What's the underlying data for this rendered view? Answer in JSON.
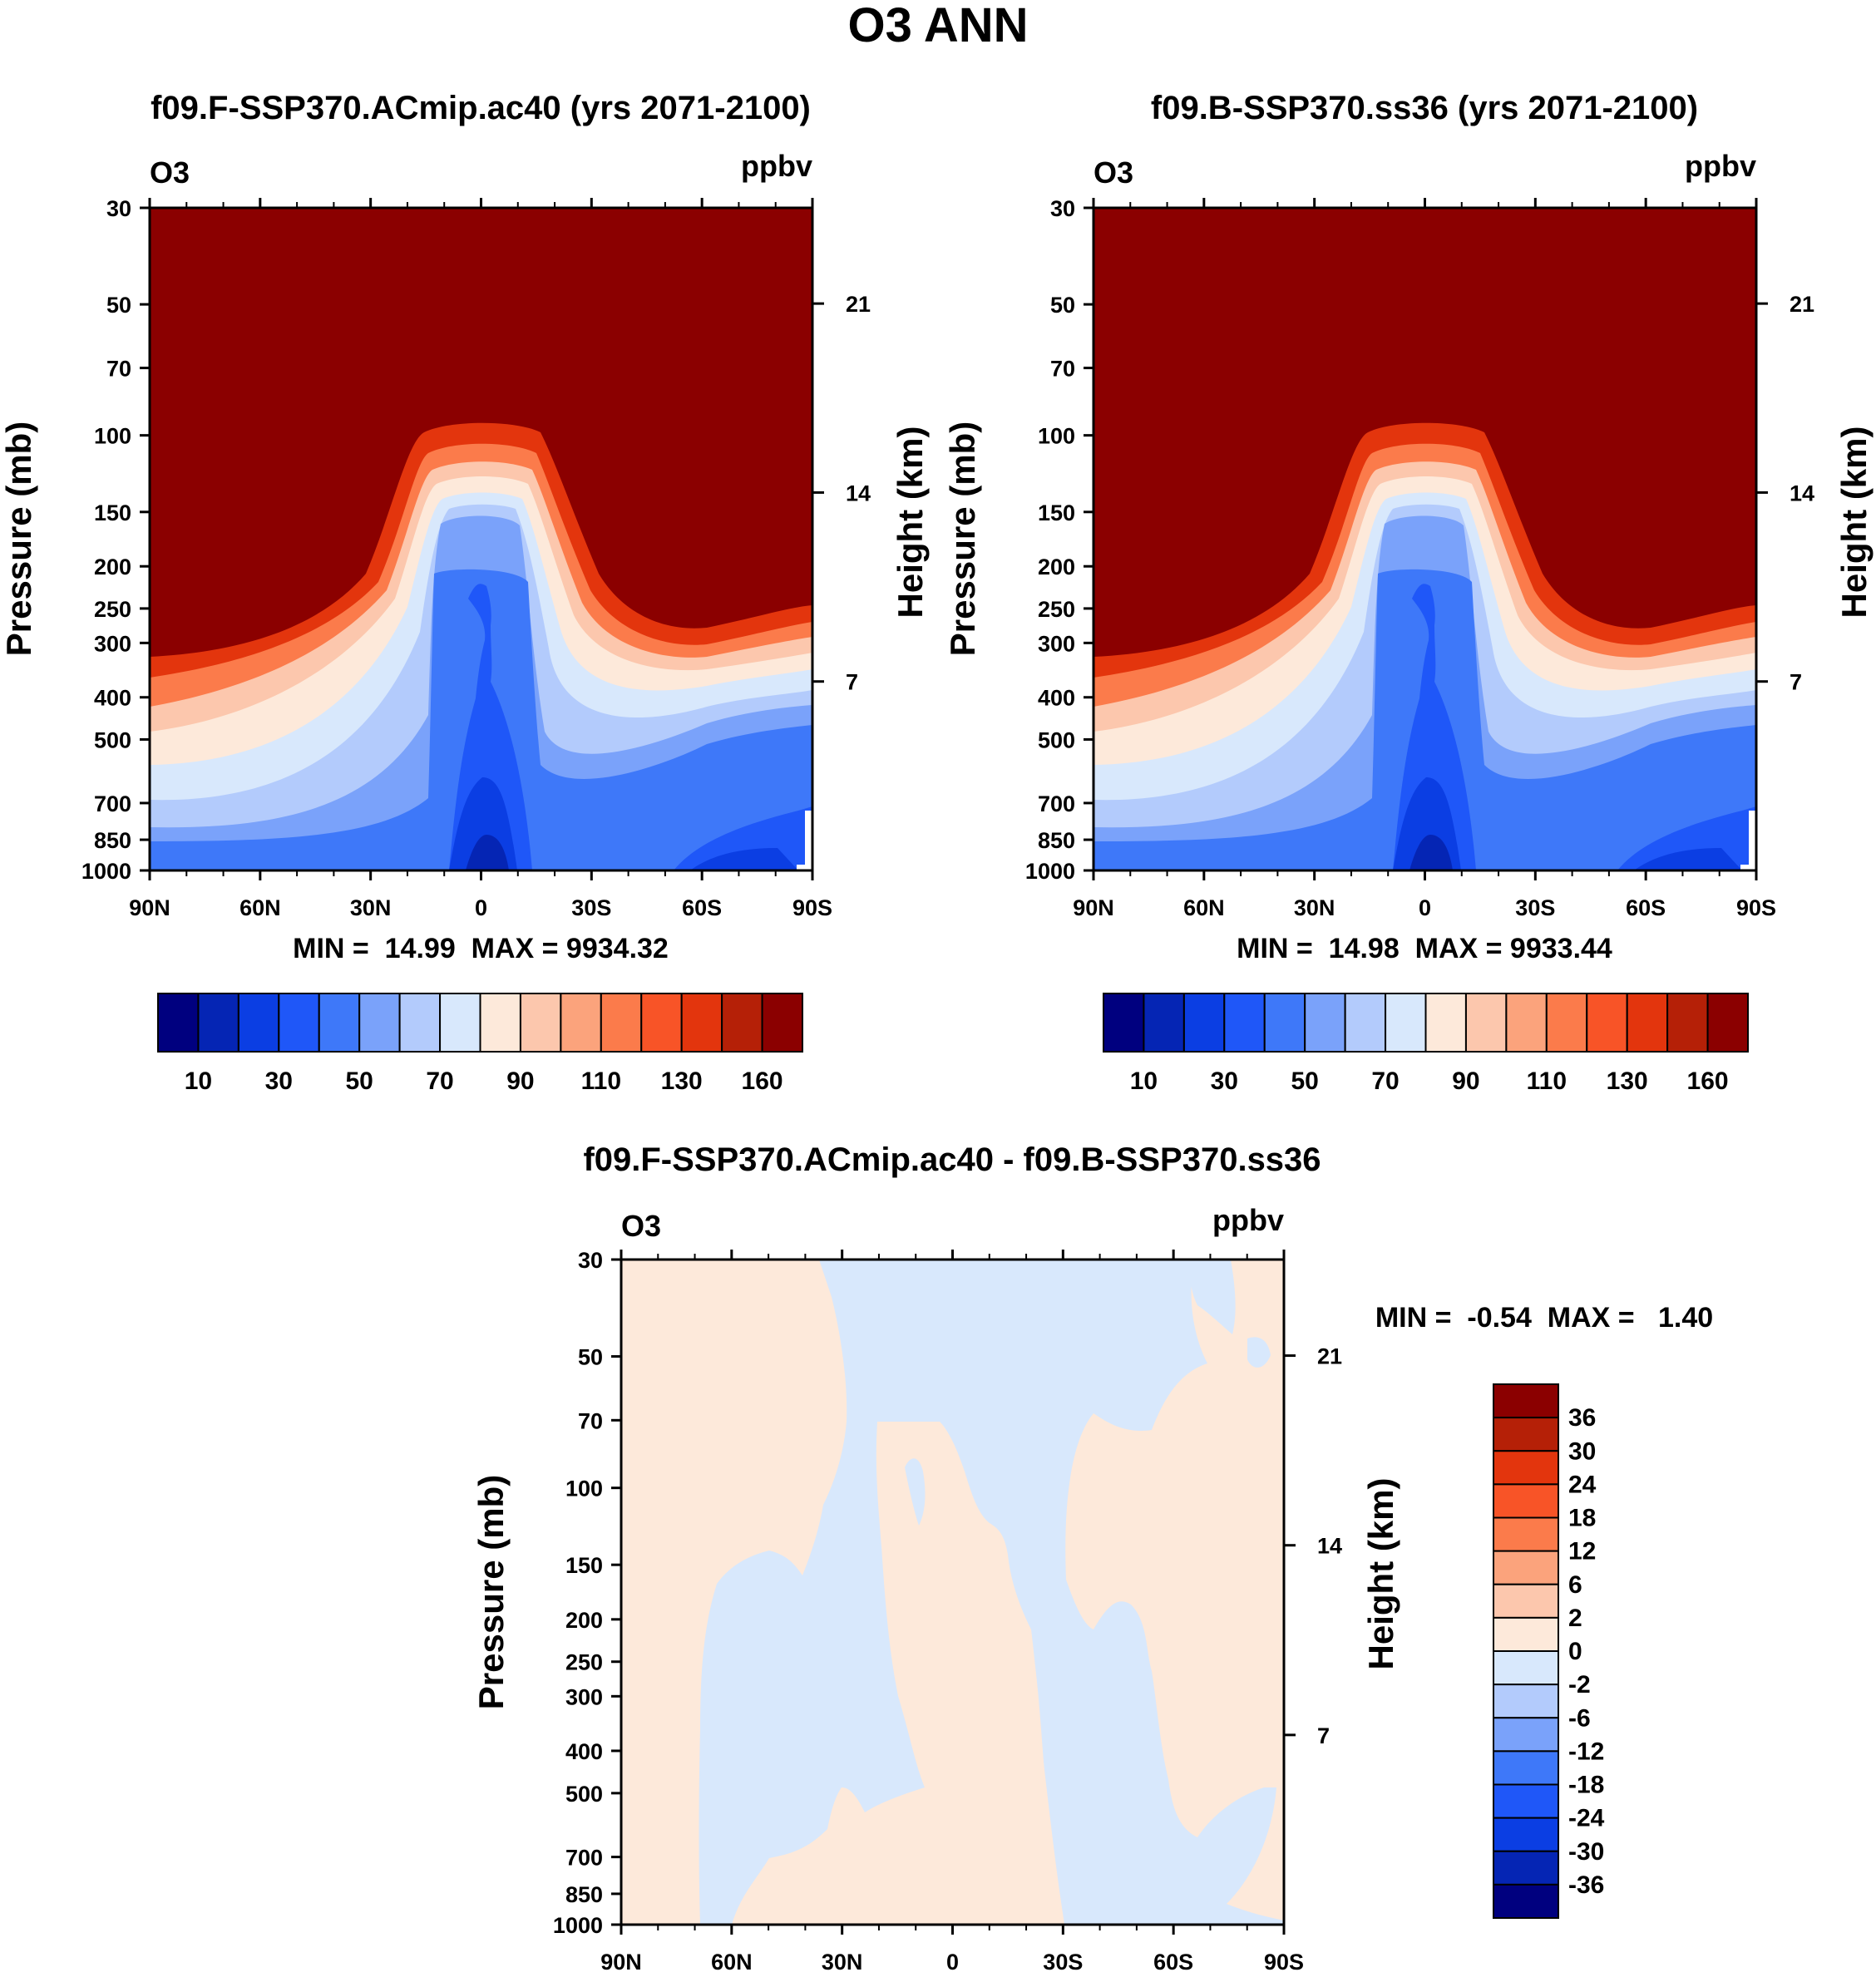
{
  "figure_title": "O3 ANN",
  "palettes": {
    "absolute": [
      "#00007f",
      "#0525b4",
      "#0b3ee3",
      "#1f57f8",
      "#3e78f9",
      "#7aa2fa",
      "#b3cbfc",
      "#d8e8fc",
      "#fde9da",
      "#fcc7ad",
      "#fba37c",
      "#fb7b4b",
      "#f85427",
      "#e3350d",
      "#b52007",
      "#8b0000"
    ],
    "difference": [
      "#00007f",
      "#0525b4",
      "#0b3ee3",
      "#1f57f8",
      "#3e78f9",
      "#7aa2fa",
      "#b3cbfc",
      "#d8e8fc",
      "#fde9da",
      "#fcc7ad",
      "#fba37c",
      "#fb7b4b",
      "#f85427",
      "#e3350d",
      "#b52007",
      "#8b0000"
    ]
  },
  "chart_data": [
    {
      "type": "heatmap",
      "panel": "model",
      "title": "f09.F-SSP370.ACmip.ac40 (yrs 2071-2100)",
      "left_label": "O3",
      "right_label": "ppbv",
      "ylabel": "Pressure (mb)",
      "ylabel_right": "Height (km)",
      "x_ticks": [
        "90N",
        "60N",
        "30N",
        "0",
        "30S",
        "60S",
        "90S"
      ],
      "x_range": [
        90,
        -90
      ],
      "y_ticks": [
        30,
        50,
        70,
        100,
        150,
        200,
        250,
        300,
        400,
        500,
        700,
        850,
        1000
      ],
      "y_range_mb": [
        30,
        1000
      ],
      "height_ticks_km": [
        21,
        14,
        7
      ],
      "stats": "MIN =  14.99  MAX = 9934.32",
      "colorbar_labels": [
        "10",
        "30",
        "50",
        "70",
        "90",
        "110",
        "130",
        "160"
      ],
      "approx_tropopause_mb": [
        [
          90,
          330
        ],
        [
          60,
          310
        ],
        [
          40,
          250
        ],
        [
          30,
          180
        ],
        [
          20,
          110
        ],
        [
          0,
          88
        ],
        [
          -20,
          110
        ],
        [
          -30,
          170
        ],
        [
          -35,
          220
        ],
        [
          -50,
          270
        ],
        [
          -70,
          260
        ],
        [
          -90,
          240
        ]
      ]
    },
    {
      "type": "heatmap",
      "panel": "observations",
      "title": "f09.B-SSP370.ss36 (yrs 2071-2100)",
      "left_label": "O3",
      "right_label": "ppbv",
      "ylabel": "Pressure (mb)",
      "ylabel_right": "Height (km)",
      "x_ticks": [
        "90N",
        "60N",
        "30N",
        "0",
        "30S",
        "60S",
        "90S"
      ],
      "x_range": [
        90,
        -90
      ],
      "y_ticks": [
        30,
        50,
        70,
        100,
        150,
        200,
        250,
        300,
        400,
        500,
        700,
        850,
        1000
      ],
      "y_range_mb": [
        30,
        1000
      ],
      "height_ticks_km": [
        21,
        14,
        7
      ],
      "stats": "MIN =  14.98  MAX = 9933.44",
      "colorbar_labels": [
        "10",
        "30",
        "50",
        "70",
        "90",
        "110",
        "130",
        "160"
      ],
      "approx_tropopause_mb": [
        [
          90,
          330
        ],
        [
          60,
          310
        ],
        [
          40,
          250
        ],
        [
          30,
          180
        ],
        [
          20,
          110
        ],
        [
          0,
          88
        ],
        [
          -20,
          110
        ],
        [
          -30,
          170
        ],
        [
          -35,
          220
        ],
        [
          -50,
          270
        ],
        [
          -70,
          260
        ],
        [
          -90,
          240
        ]
      ]
    },
    {
      "type": "heatmap",
      "panel": "difference",
      "title": "f09.F-SSP370.ACmip.ac40 - f09.B-SSP370.ss36",
      "left_label": "O3",
      "right_label": "ppbv",
      "ylabel": "Pressure (mb)",
      "ylabel_right": "Height (km)",
      "x_ticks": [
        "90N",
        "60N",
        "30N",
        "0",
        "30S",
        "60S",
        "90S"
      ],
      "x_range": [
        90,
        -90
      ],
      "y_ticks": [
        30,
        50,
        70,
        100,
        150,
        200,
        250,
        300,
        400,
        500,
        700,
        850,
        1000
      ],
      "y_range_mb": [
        30,
        1000
      ],
      "height_ticks_km": [
        21,
        14,
        7
      ],
      "stats": "MIN =  -0.54  MAX =   1.40",
      "colorbar_labels": [
        "36",
        "30",
        "24",
        "18",
        "12",
        "6",
        "2",
        "0",
        "-2",
        "-6",
        "-12",
        "-18",
        "-24",
        "-30",
        "-36"
      ],
      "fill_levels": [
        "0 to 2 (positive)",
        "-2 to 0 (negative)"
      ]
    }
  ]
}
